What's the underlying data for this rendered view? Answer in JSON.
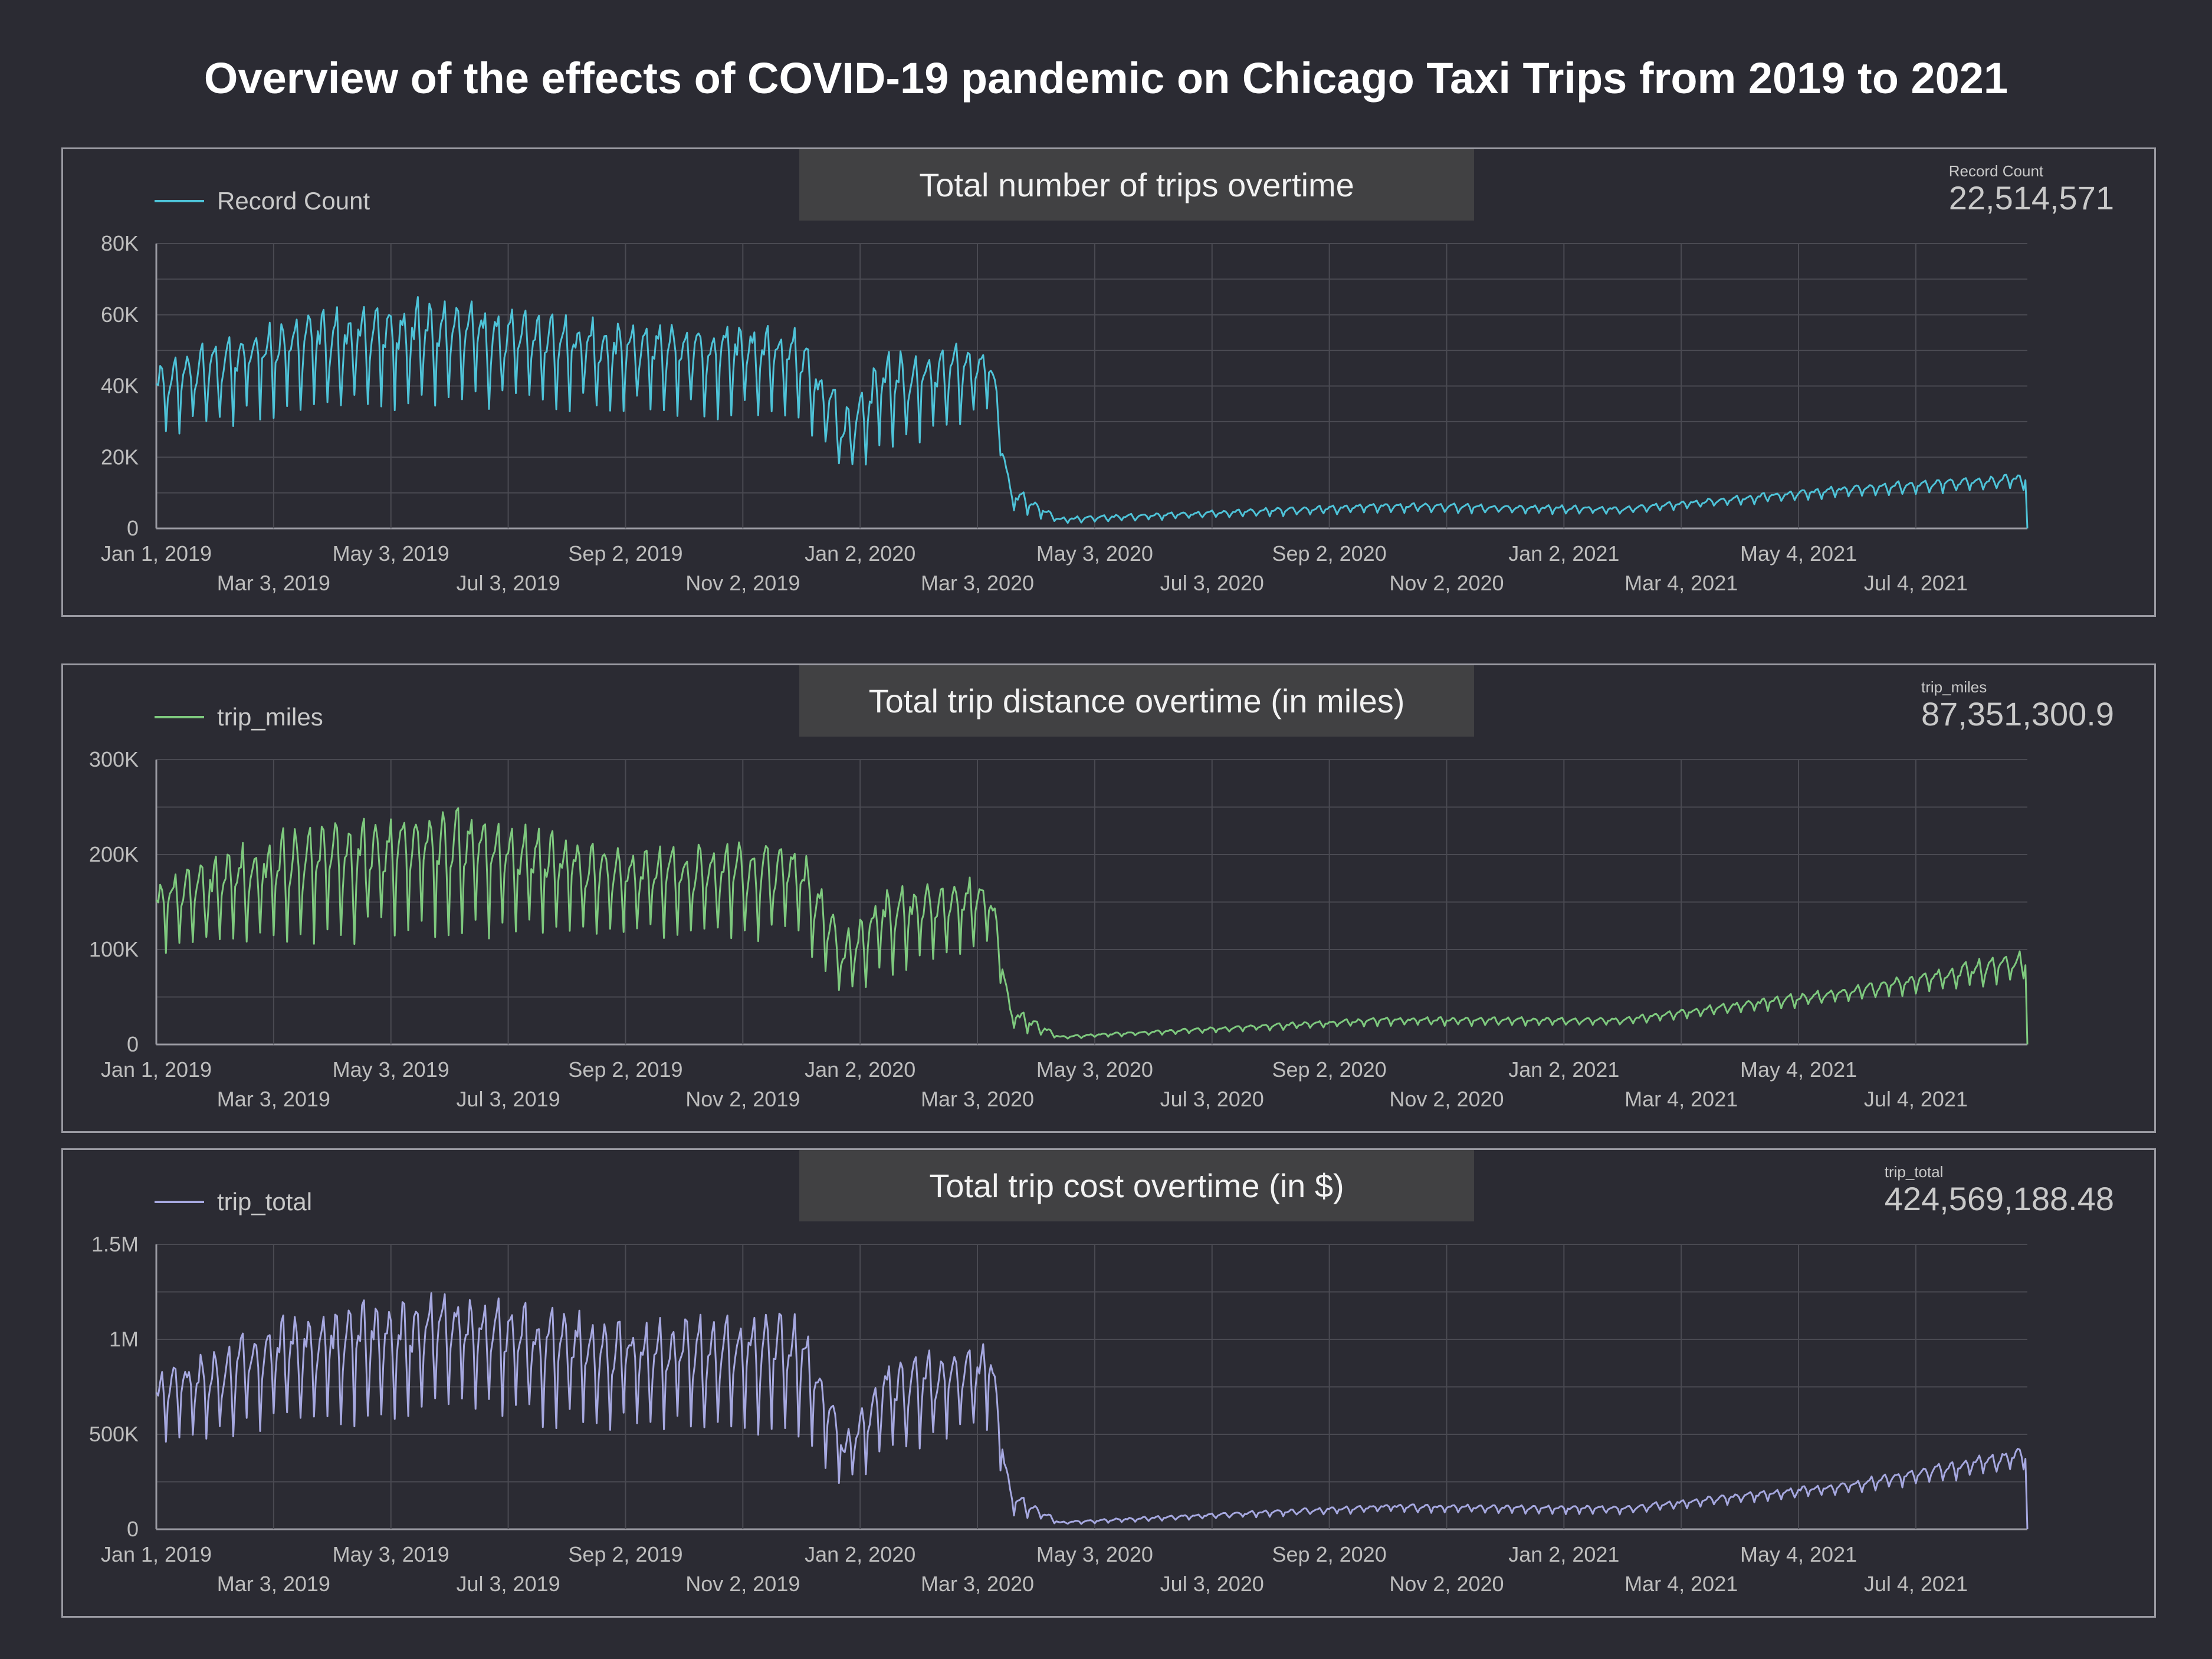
{
  "title": "Overview of the effects of COVID-19 pandemic on Chicago Taxi Trips from 2019 to 2021",
  "x_ticks_top": [
    "Jan 1, 2019",
    "May 3, 2019",
    "Sep 2, 2019",
    "Jan 2, 2020",
    "May 3, 2020",
    "Sep 2, 2020",
    "Jan 2, 2021",
    "May 4, 2021"
  ],
  "x_ticks_bottom": [
    "Mar 3, 2019",
    "Jul 3, 2019",
    "Nov 2, 2019",
    "Mar 3, 2020",
    "Jul 3, 2020",
    "Nov 2, 2020",
    "Mar 4, 2021",
    "Jul 4, 2021"
  ],
  "panels": [
    {
      "title": "Total number of trips overtime",
      "legend": "Record Count",
      "score_label": "Record Count",
      "score_value": "22,514,571",
      "color": "#4ec3d8"
    },
    {
      "title": "Total trip distance overtime (in miles)",
      "legend": "trip_miles",
      "score_label": "trip_miles",
      "score_value": "87,351,300.9",
      "color": "#7ec97e"
    },
    {
      "title": "Total trip cost overtime (in $)",
      "legend": "trip_total",
      "score_label": "trip_total",
      "score_value": "424,569,188.48",
      "color": "#a6a8e0"
    }
  ],
  "chart_data": [
    {
      "type": "line",
      "title": "Total number of trips overtime",
      "series": [
        {
          "name": "Record Count",
          "values": []
        }
      ],
      "x_range": [
        "2019-01-01",
        "2021-08-31"
      ],
      "ylim": [
        0,
        80000
      ],
      "y_ticks": [
        "0",
        "20K",
        "40K",
        "60K",
        "80K"
      ],
      "grid": true,
      "legend_position": "top-left",
      "keypoints": [
        {
          "x": "2019-01-01",
          "peak": 45000,
          "trough": 27000
        },
        {
          "x": "2019-03-15",
          "peak": 60000,
          "trough": 32000
        },
        {
          "x": "2019-06-01",
          "peak": 62000,
          "trough": 35000
        },
        {
          "x": "2019-09-01",
          "peak": 56000,
          "trough": 34000
        },
        {
          "x": "2019-12-01",
          "peak": 56000,
          "trough": 31000
        },
        {
          "x": "2019-12-25",
          "peak": 32000,
          "trough": 14000
        },
        {
          "x": "2020-01-15",
          "peak": 48000,
          "trough": 20000
        },
        {
          "x": "2020-03-10",
          "peak": 50000,
          "trough": 33000
        },
        {
          "x": "2020-03-20",
          "peak": 12000,
          "trough": 5000
        },
        {
          "x": "2020-04-15",
          "peak": 3000,
          "trough": 1500
        },
        {
          "x": "2020-10-01",
          "peak": 7000,
          "trough": 4500
        },
        {
          "x": "2021-02-01",
          "peak": 6000,
          "trough": 4000
        },
        {
          "x": "2021-06-01",
          "peak": 12000,
          "trough": 9000
        },
        {
          "x": "2021-08-25",
          "peak": 15000,
          "trough": 11000
        }
      ]
    },
    {
      "type": "line",
      "title": "Total trip distance overtime (in miles)",
      "series": [
        {
          "name": "trip_miles",
          "values": []
        }
      ],
      "x_range": [
        "2019-01-01",
        "2021-08-31"
      ],
      "ylim": [
        0,
        300000
      ],
      "y_ticks": [
        "0",
        "100K",
        "200K",
        "300K"
      ],
      "grid": true,
      "legend_position": "top-left",
      "keypoints": [
        {
          "x": "2019-01-01",
          "peak": 170000,
          "trough": 95000
        },
        {
          "x": "2019-03-15",
          "peak": 220000,
          "trough": 110000
        },
        {
          "x": "2019-06-01",
          "peak": 240000,
          "trough": 120000
        },
        {
          "x": "2019-09-01",
          "peak": 200000,
          "trough": 115000
        },
        {
          "x": "2019-12-01",
          "peak": 210000,
          "trough": 110000
        },
        {
          "x": "2019-12-25",
          "peak": 110000,
          "trough": 45000
        },
        {
          "x": "2020-01-15",
          "peak": 160000,
          "trough": 75000
        },
        {
          "x": "2020-03-10",
          "peak": 170000,
          "trough": 110000
        },
        {
          "x": "2020-03-20",
          "peak": 40000,
          "trough": 15000
        },
        {
          "x": "2020-04-15",
          "peak": 9000,
          "trough": 6000
        },
        {
          "x": "2020-10-01",
          "peak": 28000,
          "trough": 20000
        },
        {
          "x": "2021-02-01",
          "peak": 28000,
          "trough": 20000
        },
        {
          "x": "2021-06-01",
          "peak": 60000,
          "trough": 45000
        },
        {
          "x": "2021-08-25",
          "peak": 95000,
          "trough": 65000
        }
      ]
    },
    {
      "type": "line",
      "title": "Total trip cost overtime (in $)",
      "series": [
        {
          "name": "trip_total",
          "values": []
        }
      ],
      "x_range": [
        "2019-01-01",
        "2021-08-31"
      ],
      "ylim": [
        0,
        1500000
      ],
      "y_ticks": [
        "0",
        "500K",
        "1M",
        "1.5M"
      ],
      "grid": true,
      "legend_position": "top-left",
      "keypoints": [
        {
          "x": "2019-01-01",
          "peak": 800000,
          "trough": 450000
        },
        {
          "x": "2019-03-15",
          "peak": 1100000,
          "trough": 550000
        },
        {
          "x": "2019-06-01",
          "peak": 1200000,
          "trough": 600000
        },
        {
          "x": "2019-09-01",
          "peak": 1050000,
          "trough": 550000
        },
        {
          "x": "2019-12-01",
          "peak": 1100000,
          "trough": 520000
        },
        {
          "x": "2019-12-25",
          "peak": 500000,
          "trough": 200000
        },
        {
          "x": "2020-01-15",
          "peak": 850000,
          "trough": 400000
        },
        {
          "x": "2020-03-10",
          "peak": 950000,
          "trough": 550000
        },
        {
          "x": "2020-03-20",
          "peak": 200000,
          "trough": 80000
        },
        {
          "x": "2020-04-15",
          "peak": 40000,
          "trough": 25000
        },
        {
          "x": "2020-10-01",
          "peak": 130000,
          "trough": 90000
        },
        {
          "x": "2021-02-01",
          "peak": 120000,
          "trough": 80000
        },
        {
          "x": "2021-06-01",
          "peak": 250000,
          "trough": 190000
        },
        {
          "x": "2021-08-25",
          "peak": 420000,
          "trough": 300000
        }
      ]
    }
  ]
}
